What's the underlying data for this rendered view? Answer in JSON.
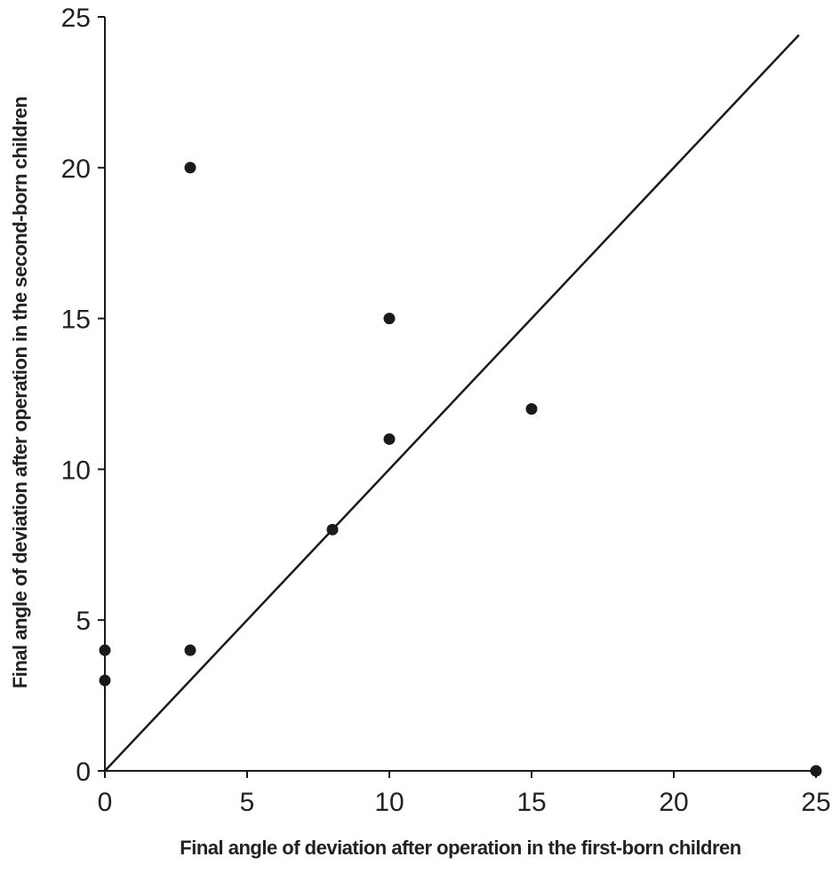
{
  "chart_data": {
    "type": "scatter",
    "title": "",
    "xlabel": "Final angle of deviation after operation in the first-born children",
    "ylabel": "Final angle of deviation after operation in the second-born children",
    "xlim": [
      0,
      25
    ],
    "ylim": [
      0,
      25
    ],
    "x_ticks": [
      0,
      5,
      10,
      15,
      20,
      25
    ],
    "y_ticks": [
      0,
      5,
      10,
      15,
      20,
      25
    ],
    "x_tick_labels": [
      "0",
      "5",
      "10",
      "15",
      "20",
      "25"
    ],
    "y_tick_labels": [
      "0",
      "5",
      "10",
      "15",
      "20",
      "25"
    ],
    "grid": false,
    "legend": "none",
    "point_color": "#1a1a1a",
    "line_color": "#1a1a1a",
    "reference_line": {
      "type": "identity",
      "x": [
        0,
        24.4
      ],
      "y": [
        0,
        24.4
      ]
    },
    "series": [
      {
        "x": [
          0,
          0,
          3,
          3,
          8,
          10,
          10,
          15,
          25
        ],
        "y": [
          4,
          3,
          4,
          20,
          8,
          15,
          11,
          12,
          0
        ]
      }
    ]
  }
}
